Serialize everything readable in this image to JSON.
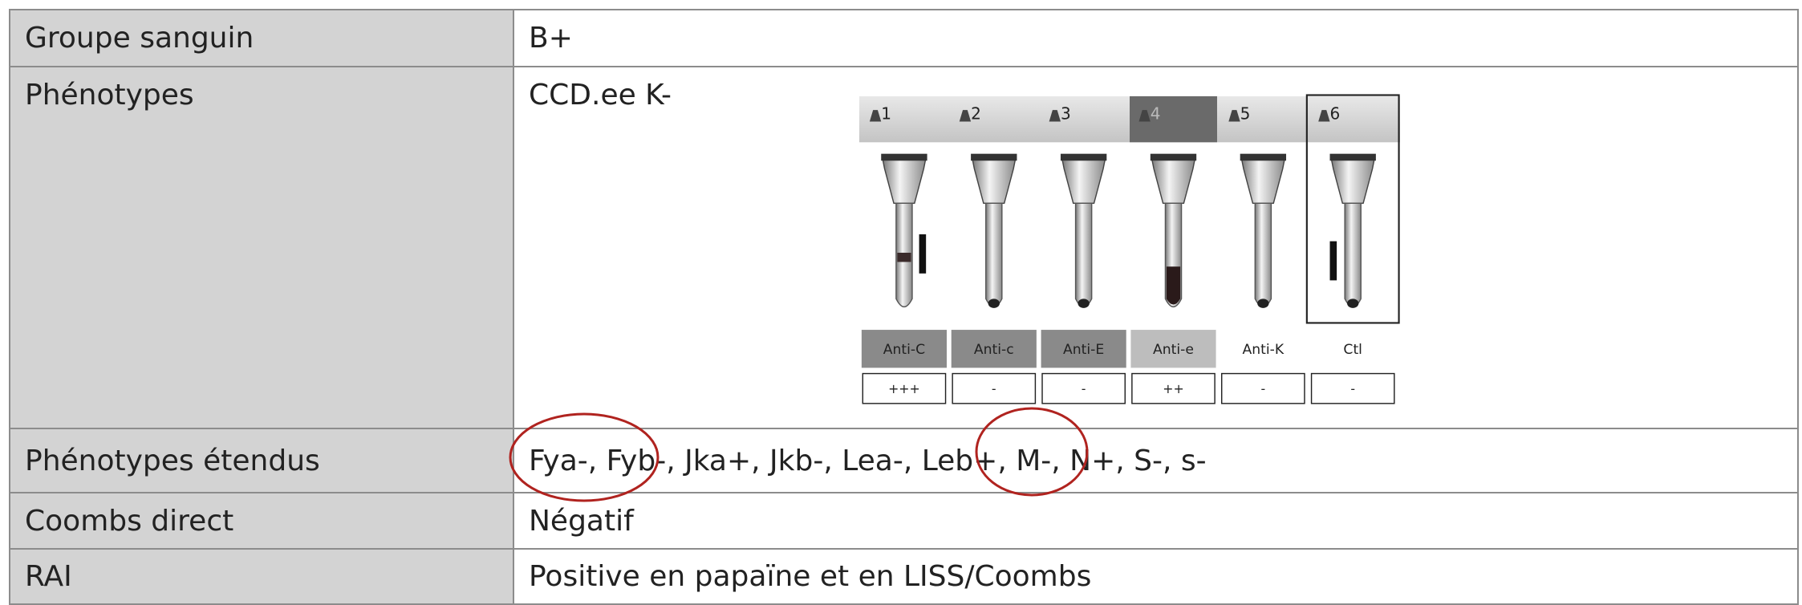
{
  "table": {
    "rows": [
      [
        "Groupe sanguin",
        "B+"
      ],
      [
        "Phénotypes",
        "CCD.ee K-"
      ],
      [
        "Phénotypes étendus",
        "Fya-, Fyb-, Jka+, Jkb-, Lea-, Leb+, M-, N+, S-, s-"
      ],
      [
        "Coombs direct",
        "Négatif"
      ],
      [
        "RAI",
        "Positive en papaïne et en LISS/Coombs"
      ]
    ]
  },
  "gel_card": {
    "wells": [
      {
        "number": "1",
        "reagent": "Anti-C",
        "result": "+++"
      },
      {
        "number": "2",
        "reagent": "Anti-c",
        "result": "-"
      },
      {
        "number": "3",
        "reagent": "Anti-E",
        "result": "-"
      },
      {
        "number": "4",
        "reagent": "Anti-e",
        "result": "++"
      },
      {
        "number": "5",
        "reagent": "Anti-K",
        "result": "-"
      },
      {
        "number": "6",
        "reagent": "Ctl",
        "result": "-"
      }
    ]
  }
}
